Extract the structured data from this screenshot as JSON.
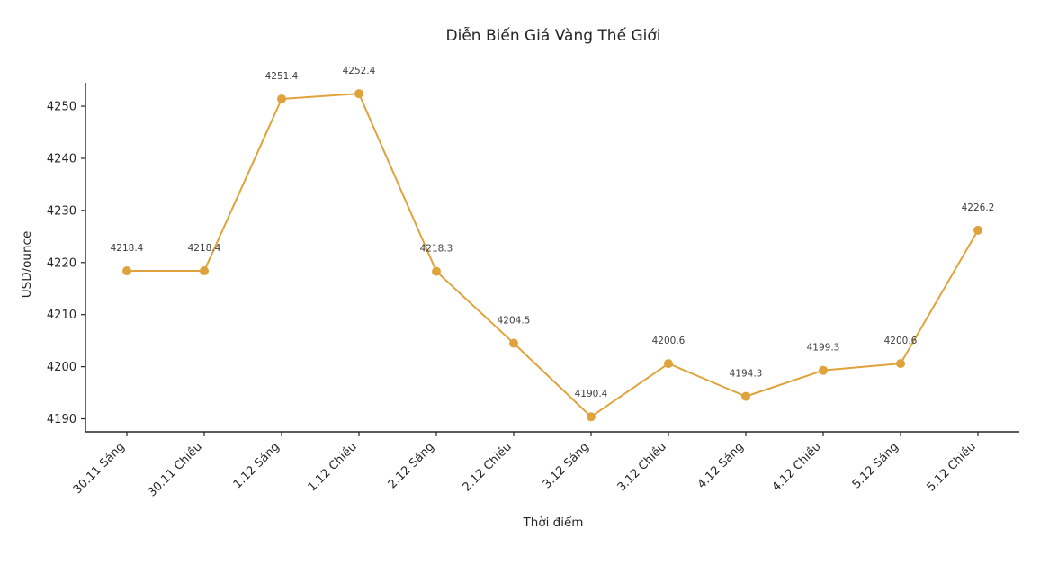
{
  "chart_data": {
    "type": "line",
    "title": "Diễn Biến Giá Vàng Thế Giới",
    "xlabel": "Thời điểm",
    "ylabel": "USD/ounce",
    "categories": [
      "30.11 Sáng",
      "30.11 Chiều",
      "1.12 Sáng",
      "1.12 Chiều",
      "2.12 Sáng",
      "2.12 Chiều",
      "3.12 Sáng",
      "3.12 Chiều",
      "4.12 Sáng",
      "4.12 Chiều",
      "5.12 Sáng",
      "5.12 Chiều"
    ],
    "values": [
      4218.4,
      4218.4,
      4251.4,
      4252.4,
      4218.3,
      4204.5,
      4190.4,
      4200.6,
      4194.3,
      4199.3,
      4200.6,
      4226.2
    ],
    "yticks": [
      4190,
      4200,
      4210,
      4220,
      4230,
      4240,
      4250
    ],
    "ylim": [
      4187.5,
      4254.5
    ],
    "grid": false,
    "legend": null,
    "line_color": "#E0A33C",
    "marker": "circle",
    "marker_color": "#E0A33C",
    "axis_color": "#262626",
    "label_color": "#3d3d3d",
    "background": "#FFFFFF",
    "x_tick_rotation_deg": 45
  }
}
